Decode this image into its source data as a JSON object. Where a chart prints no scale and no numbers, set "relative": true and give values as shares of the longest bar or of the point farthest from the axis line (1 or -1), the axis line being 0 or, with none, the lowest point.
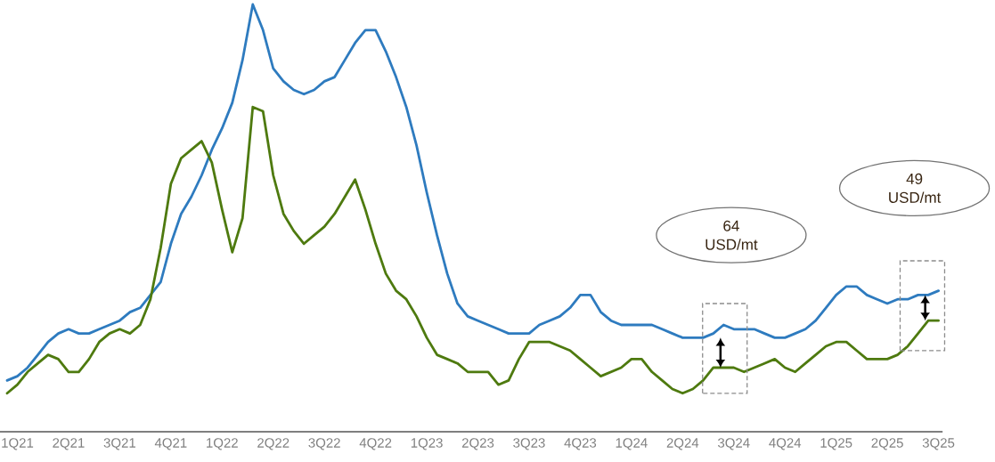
{
  "chart_data": {
    "type": "line",
    "relative": true,
    "categories": [
      null,
      "1Q21",
      null,
      null,
      null,
      null,
      "2Q21",
      null,
      null,
      null,
      null,
      "3Q21",
      null,
      null,
      null,
      null,
      "4Q21",
      null,
      null,
      null,
      null,
      "1Q22",
      null,
      null,
      null,
      null,
      "2Q22",
      null,
      null,
      null,
      null,
      "3Q22",
      null,
      null,
      null,
      null,
      "4Q22",
      null,
      null,
      null,
      null,
      "1Q23",
      null,
      null,
      null,
      null,
      "2Q23",
      null,
      null,
      null,
      null,
      "3Q23",
      null,
      null,
      null,
      null,
      "4Q23",
      null,
      null,
      null,
      null,
      "1Q24",
      null,
      null,
      null,
      null,
      "2Q24",
      null,
      null,
      null,
      null,
      "3Q24",
      null,
      null,
      null,
      null,
      "4Q24",
      null,
      null,
      null,
      null,
      "1Q25",
      null,
      null,
      null,
      null,
      "2Q25",
      null,
      null,
      null,
      null,
      "3Q25"
    ],
    "series": [
      {
        "color": "#2e7bbf",
        "values": [
          0.12,
          0.13,
          0.15,
          0.18,
          0.21,
          0.23,
          0.24,
          0.23,
          0.23,
          0.24,
          0.25,
          0.26,
          0.28,
          0.29,
          0.32,
          0.35,
          0.44,
          0.51,
          0.55,
          0.6,
          0.66,
          0.71,
          0.77,
          0.87,
          1.0,
          0.94,
          0.85,
          0.82,
          0.8,
          0.79,
          0.8,
          0.82,
          0.83,
          0.87,
          0.91,
          0.94,
          0.94,
          0.89,
          0.83,
          0.76,
          0.67,
          0.56,
          0.46,
          0.37,
          0.3,
          0.27,
          0.26,
          0.25,
          0.24,
          0.23,
          0.23,
          0.23,
          0.25,
          0.26,
          0.27,
          0.29,
          0.32,
          0.32,
          0.28,
          0.26,
          0.25,
          0.25,
          0.25,
          0.25,
          0.24,
          0.23,
          0.22,
          0.22,
          0.22,
          0.23,
          0.25,
          0.24,
          0.24,
          0.24,
          0.23,
          0.22,
          0.22,
          0.23,
          0.24,
          0.26,
          0.29,
          0.32,
          0.34,
          0.34,
          0.32,
          0.31,
          0.3,
          0.31,
          0.31,
          0.32,
          0.32,
          0.33
        ]
      },
      {
        "color": "#4e7a0f",
        "values": [
          0.09,
          0.11,
          0.14,
          0.16,
          0.18,
          0.17,
          0.14,
          0.14,
          0.17,
          0.21,
          0.23,
          0.24,
          0.23,
          0.25,
          0.31,
          0.43,
          0.58,
          0.64,
          0.66,
          0.68,
          0.63,
          0.52,
          0.42,
          0.5,
          0.76,
          0.75,
          0.6,
          0.51,
          0.47,
          0.44,
          0.46,
          0.48,
          0.51,
          0.55,
          0.59,
          0.52,
          0.44,
          0.37,
          0.33,
          0.31,
          0.27,
          0.22,
          0.18,
          0.17,
          0.16,
          0.14,
          0.14,
          0.14,
          0.11,
          0.12,
          0.17,
          0.21,
          0.21,
          0.21,
          0.2,
          0.19,
          0.17,
          0.15,
          0.13,
          0.14,
          0.15,
          0.17,
          0.17,
          0.14,
          0.12,
          0.1,
          0.09,
          0.1,
          0.12,
          0.15,
          0.15,
          0.15,
          0.14,
          0.15,
          0.16,
          0.17,
          0.15,
          0.14,
          0.16,
          0.18,
          0.2,
          0.21,
          0.21,
          0.19,
          0.17,
          0.17,
          0.17,
          0.18,
          0.2,
          0.23,
          0.26,
          0.26
        ]
      }
    ],
    "annotations": [
      "64 USD/mt",
      "49 USD/mt"
    ]
  }
}
